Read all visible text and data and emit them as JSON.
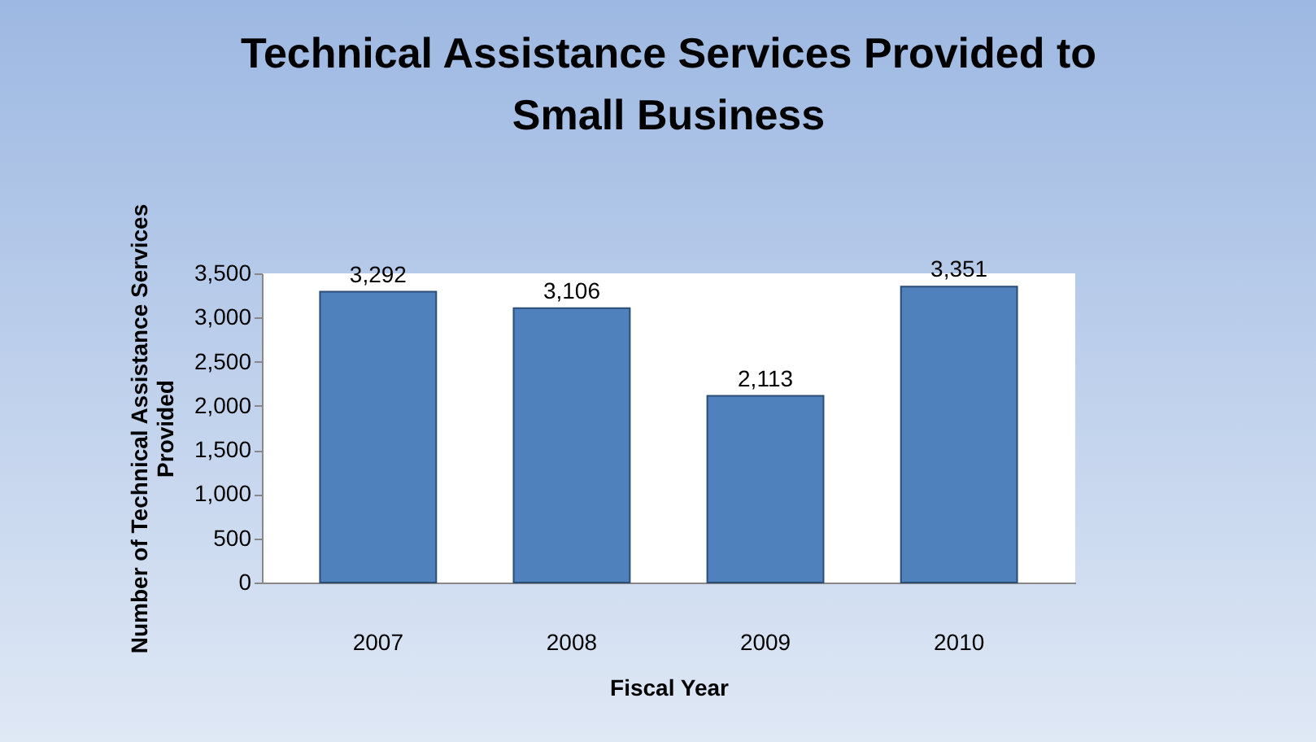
{
  "chart_data": {
    "type": "bar",
    "title": "Technical Assistance Services Provided to Small Business",
    "xlabel": "Fiscal Year",
    "ylabel": "Number of Technical Assistance Services Provided",
    "categories": [
      "2007",
      "2008",
      "2009",
      "2010"
    ],
    "values": [
      3292,
      3106,
      2113,
      3351
    ],
    "color": "#4f81bd",
    "value_labels": [
      "3,292",
      "3,106",
      "2,113",
      "3,351"
    ],
    "ylim": [
      0,
      3500
    ],
    "yticks": [
      0,
      500,
      {
        "value": 1000,
        "label": "1,000"
      },
      {
        "value": 1500,
        "label": "1,500"
      },
      {
        "value": 2000,
        "label": "2,000"
      },
      {
        "value": 2500,
        "label": "2,500"
      },
      {
        "value": 3000,
        "label": "3,000"
      },
      {
        "value": 3500,
        "label": "3,500"
      }
    ]
  }
}
